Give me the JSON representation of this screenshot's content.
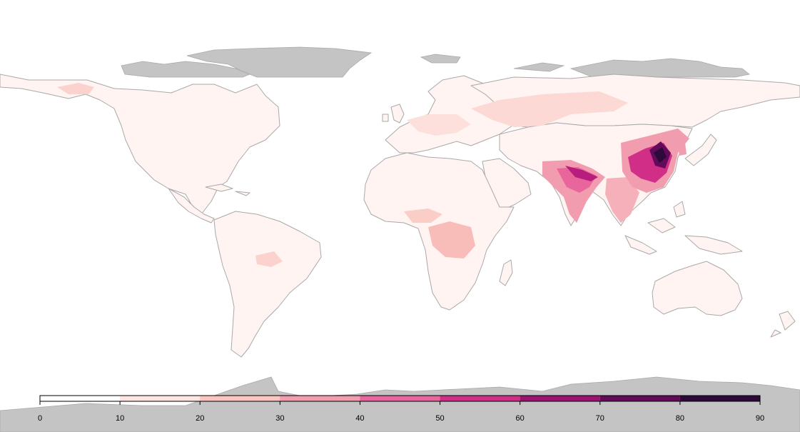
{
  "map": {
    "type": "choropleth world map",
    "colors": {
      "background": "#ffffff",
      "land_low": "#fff4f1",
      "border": "#a9a9a9",
      "no_data": "#c4c4c4"
    },
    "legend": {
      "position": "bottom",
      "ticks": [
        "0",
        "10",
        "20",
        "30",
        "40",
        "50",
        "60",
        "70",
        "80",
        "90"
      ],
      "bins": [
        {
          "from": 0,
          "to": 10,
          "color": "#ffffff"
        },
        {
          "from": 10,
          "to": 20,
          "color": "#fde5e1"
        },
        {
          "from": 20,
          "to": 30,
          "color": "#fbc4c0"
        },
        {
          "from": 30,
          "to": 40,
          "color": "#f29cb0"
        },
        {
          "from": 40,
          "to": 50,
          "color": "#e8669c"
        },
        {
          "from": 50,
          "to": 60,
          "color": "#d12e87"
        },
        {
          "from": 60,
          "to": 70,
          "color": "#9e1271"
        },
        {
          "from": 70,
          "to": 80,
          "color": "#630a5a"
        },
        {
          "from": 80,
          "to": 90,
          "color": "#2d0a3a"
        }
      ]
    }
  }
}
